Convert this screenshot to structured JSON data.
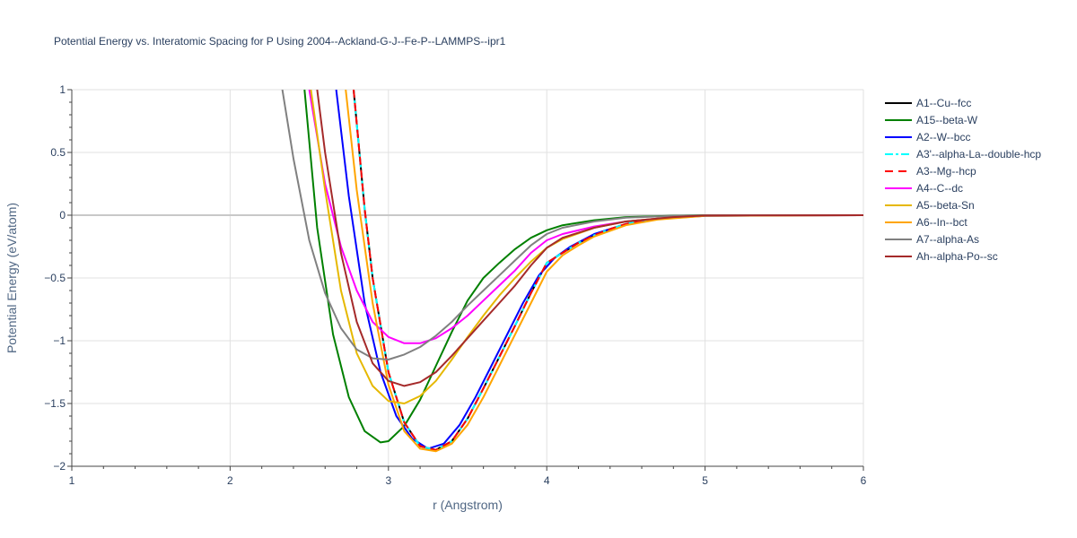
{
  "chart_data": {
    "type": "line",
    "title": "Potential Energy vs. Interatomic Spacing for P Using 2004--Ackland-G-J--Fe-P--LAMMPS--ipr1",
    "xlabel": "r (Angstrom)",
    "ylabel": "Potential Energy (eV/atom)",
    "xlim": [
      1,
      6
    ],
    "ylim": [
      -2,
      1
    ],
    "xticks": [
      1,
      2,
      3,
      4,
      5,
      6
    ],
    "xtick_labels": [
      "1",
      "2",
      "3",
      "4",
      "5",
      "6"
    ],
    "yticks": [
      -2,
      -1.5,
      -1,
      -0.5,
      0,
      0.5,
      1
    ],
    "ytick_labels": [
      "−2",
      "−1.5",
      "−1",
      "−0.5",
      "0",
      "0.5",
      "1"
    ],
    "grid": true,
    "legend_position": "right",
    "series": [
      {
        "name": "A1--Cu--fcc",
        "color": "#000000",
        "dash": "solid",
        "x": [
          2.78,
          2.85,
          2.9,
          3.0,
          3.1,
          3.2,
          3.3,
          3.4,
          3.5,
          3.6,
          3.7,
          3.8,
          3.9,
          4.0,
          4.1,
          4.2,
          4.3,
          4.4,
          4.5,
          4.6,
          4.8,
          5.0,
          5.5,
          6.0
        ],
        "y": [
          1.0,
          0.05,
          -0.5,
          -1.25,
          -1.65,
          -1.84,
          -1.87,
          -1.8,
          -1.62,
          -1.38,
          -1.13,
          -0.88,
          -0.62,
          -0.38,
          -0.3,
          -0.22,
          -0.16,
          -0.11,
          -0.07,
          -0.045,
          -0.015,
          -0.003,
          0,
          0
        ]
      },
      {
        "name": "A15--beta-W",
        "color": "#008000",
        "dash": "solid",
        "x": [
          2.47,
          2.55,
          2.65,
          2.75,
          2.85,
          2.95,
          3.0,
          3.1,
          3.2,
          3.3,
          3.4,
          3.5,
          3.6,
          3.7,
          3.8,
          3.9,
          4.0,
          4.1,
          4.3,
          4.5,
          4.8,
          5.0,
          6.0
        ],
        "y": [
          1.0,
          -0.1,
          -0.95,
          -1.45,
          -1.72,
          -1.81,
          -1.8,
          -1.68,
          -1.47,
          -1.2,
          -0.93,
          -0.68,
          -0.5,
          -0.38,
          -0.27,
          -0.18,
          -0.12,
          -0.08,
          -0.04,
          -0.015,
          -0.004,
          0,
          0
        ]
      },
      {
        "name": "A2--W--bcc",
        "color": "#0000ff",
        "dash": "solid",
        "x": [
          2.67,
          2.75,
          2.85,
          2.95,
          3.05,
          3.15,
          3.25,
          3.35,
          3.45,
          3.55,
          3.65,
          3.75,
          3.85,
          3.95,
          4.05,
          4.15,
          4.3,
          4.5,
          4.7,
          5.0,
          6.0
        ],
        "y": [
          1.0,
          0.15,
          -0.7,
          -1.25,
          -1.6,
          -1.78,
          -1.86,
          -1.82,
          -1.67,
          -1.45,
          -1.2,
          -0.95,
          -0.7,
          -0.48,
          -0.34,
          -0.25,
          -0.15,
          -0.07,
          -0.03,
          -0.005,
          0
        ]
      },
      {
        "name": "A3'--alpha-La--double-hcp",
        "color": "#00ffff",
        "dash": "dashdot",
        "x": [
          2.78,
          2.85,
          2.9,
          3.0,
          3.1,
          3.2,
          3.3,
          3.4,
          3.5,
          3.6,
          3.7,
          3.8,
          3.9,
          4.0,
          4.1,
          4.2,
          4.3,
          4.4,
          4.5,
          4.6,
          4.8,
          5.0,
          5.5,
          6.0
        ],
        "y": [
          1.0,
          0.05,
          -0.5,
          -1.25,
          -1.65,
          -1.84,
          -1.87,
          -1.8,
          -1.62,
          -1.38,
          -1.13,
          -0.88,
          -0.62,
          -0.38,
          -0.3,
          -0.22,
          -0.16,
          -0.11,
          -0.07,
          -0.045,
          -0.015,
          -0.003,
          0,
          0
        ]
      },
      {
        "name": "A3--Mg--hcp",
        "color": "#ff0000",
        "dash": "dash",
        "x": [
          2.78,
          2.85,
          2.9,
          3.0,
          3.1,
          3.2,
          3.3,
          3.4,
          3.5,
          3.6,
          3.7,
          3.8,
          3.9,
          4.0,
          4.1,
          4.2,
          4.3,
          4.4,
          4.5,
          4.6,
          4.8,
          5.0,
          5.5,
          6.0
        ],
        "y": [
          1.0,
          0.05,
          -0.5,
          -1.25,
          -1.65,
          -1.84,
          -1.87,
          -1.8,
          -1.62,
          -1.38,
          -1.13,
          -0.88,
          -0.62,
          -0.38,
          -0.3,
          -0.22,
          -0.16,
          -0.11,
          -0.07,
          -0.045,
          -0.015,
          -0.003,
          0,
          0
        ]
      },
      {
        "name": "A4--C--dc",
        "color": "#ff00ff",
        "dash": "solid",
        "x": [
          2.5,
          2.6,
          2.7,
          2.8,
          2.9,
          3.0,
          3.1,
          3.2,
          3.3,
          3.4,
          3.5,
          3.6,
          3.7,
          3.8,
          3.9,
          4.0,
          4.1,
          4.3,
          4.5,
          4.8,
          5.0,
          6.0
        ],
        "y": [
          1.0,
          0.25,
          -0.25,
          -0.6,
          -0.85,
          -0.97,
          -1.02,
          -1.02,
          -0.98,
          -0.9,
          -0.8,
          -0.68,
          -0.56,
          -0.44,
          -0.3,
          -0.2,
          -0.15,
          -0.09,
          -0.05,
          -0.015,
          -0.003,
          0
        ]
      },
      {
        "name": "A5--beta-Sn",
        "color": "#e6b800",
        "dash": "solid",
        "x": [
          2.51,
          2.6,
          2.7,
          2.8,
          2.9,
          3.0,
          3.1,
          3.2,
          3.3,
          3.4,
          3.5,
          3.6,
          3.7,
          3.8,
          3.9,
          4.0,
          4.1,
          4.3,
          4.5,
          4.8,
          5.0,
          6.0
        ],
        "y": [
          1.0,
          0.2,
          -0.6,
          -1.1,
          -1.36,
          -1.48,
          -1.5,
          -1.44,
          -1.32,
          -1.15,
          -0.97,
          -0.8,
          -0.64,
          -0.5,
          -0.37,
          -0.26,
          -0.19,
          -0.1,
          -0.05,
          -0.015,
          -0.003,
          0
        ]
      },
      {
        "name": "A6--In--bct",
        "color": "#ffa500",
        "dash": "solid",
        "x": [
          2.73,
          2.8,
          2.9,
          3.0,
          3.1,
          3.2,
          3.3,
          3.4,
          3.5,
          3.6,
          3.7,
          3.8,
          3.9,
          4.0,
          4.1,
          4.2,
          4.3,
          4.5,
          4.7,
          5.0,
          6.0
        ],
        "y": [
          1.0,
          0.2,
          -0.7,
          -1.35,
          -1.72,
          -1.86,
          -1.88,
          -1.82,
          -1.67,
          -1.45,
          -1.2,
          -0.95,
          -0.7,
          -0.45,
          -0.32,
          -0.24,
          -0.17,
          -0.08,
          -0.035,
          -0.005,
          0
        ]
      },
      {
        "name": "A7--alpha-As",
        "color": "#808080",
        "dash": "solid",
        "x": [
          2.33,
          2.4,
          2.5,
          2.6,
          2.7,
          2.8,
          2.9,
          3.0,
          3.1,
          3.2,
          3.3,
          3.4,
          3.5,
          3.6,
          3.7,
          3.8,
          3.9,
          4.0,
          4.1,
          4.3,
          4.5,
          4.8,
          5.0,
          6.0
        ],
        "y": [
          1.0,
          0.45,
          -0.2,
          -0.62,
          -0.9,
          -1.07,
          -1.14,
          -1.15,
          -1.11,
          -1.05,
          -0.96,
          -0.85,
          -0.72,
          -0.6,
          -0.48,
          -0.36,
          -0.24,
          -0.15,
          -0.1,
          -0.05,
          -0.02,
          -0.005,
          -0.001,
          0
        ]
      },
      {
        "name": "Ah--alpha-Po--sc",
        "color": "#a52a2a",
        "dash": "solid",
        "x": [
          2.55,
          2.6,
          2.7,
          2.8,
          2.9,
          3.0,
          3.1,
          3.2,
          3.3,
          3.4,
          3.5,
          3.6,
          3.7,
          3.8,
          3.9,
          4.0,
          4.1,
          4.3,
          4.5,
          4.8,
          5.0,
          6.0
        ],
        "y": [
          1.0,
          0.5,
          -0.3,
          -0.85,
          -1.18,
          -1.32,
          -1.36,
          -1.33,
          -1.25,
          -1.12,
          -0.98,
          -0.84,
          -0.7,
          -0.56,
          -0.4,
          -0.26,
          -0.18,
          -0.1,
          -0.05,
          -0.015,
          -0.003,
          0
        ]
      }
    ]
  }
}
